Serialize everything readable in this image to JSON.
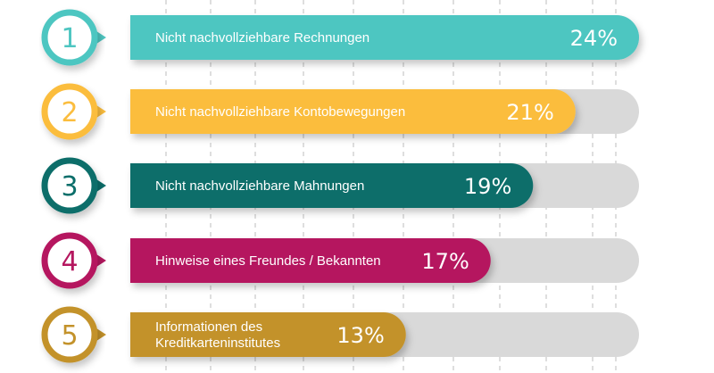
{
  "chart_data": {
    "type": "bar",
    "orientation": "horizontal",
    "ranks": [
      "1",
      "2",
      "3",
      "4",
      "5"
    ],
    "categories": [
      "Nicht nachvollziehbare Rechnungen",
      "Nicht nachvollziehbare Kontobewegungen",
      "Nicht nachvollziehbare Mahnungen",
      "Hinweise eines Freundes / Bekannten",
      "Informationen des Kreditkarteninstitutes"
    ],
    "category_lines": [
      [
        "Nicht nachvollziehbare Rechnungen"
      ],
      [
        "Nicht nachvollziehbare Kontobewegungen"
      ],
      [
        "Nicht nachvollziehbare Mahnungen"
      ],
      [
        "Hinweise eines Freundes / Bekannten"
      ],
      [
        "Informationen des",
        "Kreditkarteninstitutes"
      ]
    ],
    "values": [
      24,
      21,
      19,
      17,
      13
    ],
    "value_labels": [
      "24%",
      "21%",
      "19%",
      "17%",
      "13%"
    ],
    "colors": [
      "#4ec6c1",
      "#fbbd3e",
      "#0b6e6a",
      "#b5175f",
      "#c3922a"
    ],
    "track_color": "#d9d9d9",
    "grid": true,
    "xlim": [
      0,
      24
    ]
  }
}
